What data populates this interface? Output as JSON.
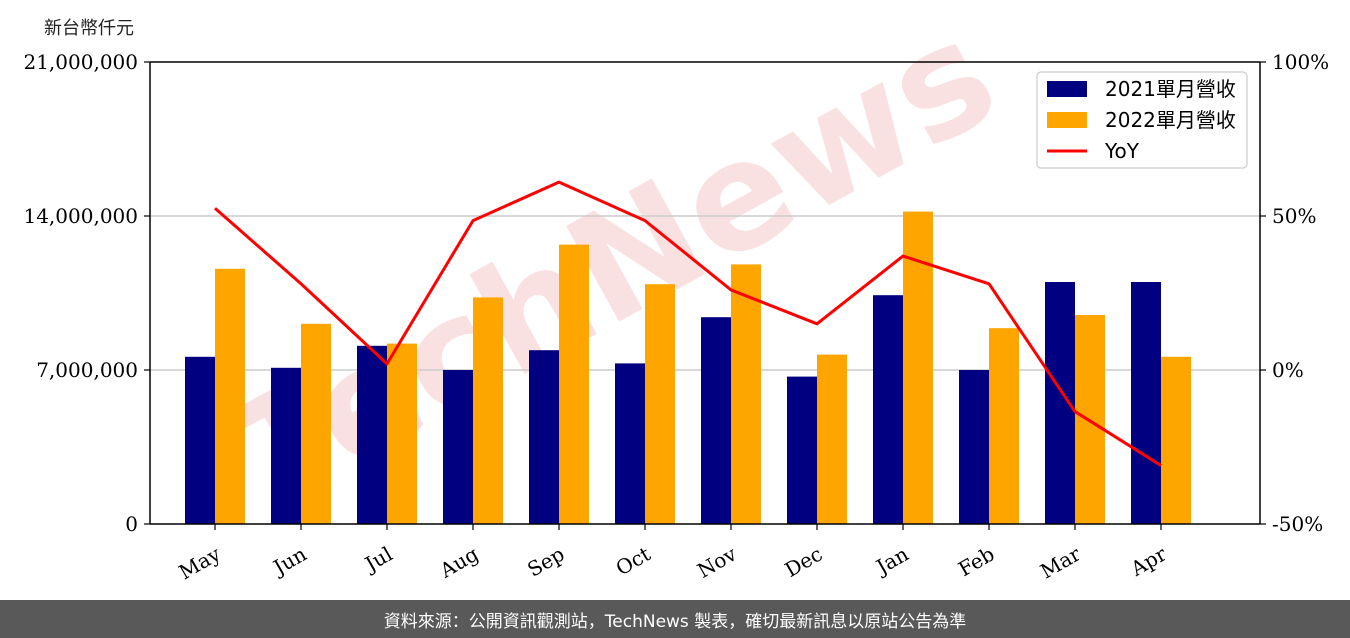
{
  "chart_data": {
    "type": "bar",
    "ylabel": "新台幣仟元",
    "categories": [
      "May",
      "Jun",
      "Jul",
      "Aug",
      "Sep",
      "Oct",
      "Nov",
      "Dec",
      "Jan",
      "Feb",
      "Mar",
      "Apr"
    ],
    "series": [
      {
        "name": "2021單月營收",
        "type": "bar",
        "color": "#000080",
        "values": [
          7600000,
          7100000,
          8100000,
          7000000,
          7900000,
          7300000,
          9400000,
          6700000,
          10400000,
          7000000,
          11000000,
          11000000
        ]
      },
      {
        "name": "2022單月營收",
        "type": "bar",
        "color": "#FFA500",
        "values": [
          11600000,
          9100000,
          8200000,
          10300000,
          12700000,
          10900000,
          11800000,
          7700000,
          14200000,
          8900000,
          9500000,
          7600000
        ]
      },
      {
        "name": "YoY",
        "type": "line",
        "axis": "right",
        "color": "#FF0000",
        "values": [
          52.5,
          28,
          2,
          48.5,
          61,
          48.5,
          26,
          15,
          37,
          28,
          -13.5,
          -31
        ]
      }
    ],
    "ylim": [
      0,
      21000000
    ],
    "yticks": [
      "0",
      "7,000,000",
      "14,000,000",
      "21,000,000"
    ],
    "ytick_values": [
      0,
      7000000,
      14000000,
      21000000
    ],
    "y2lim": [
      -50,
      100
    ],
    "y2ticks": [
      "-50%",
      "0%",
      "50%",
      "100%"
    ],
    "y2tick_values": [
      -50,
      0,
      50,
      100
    ],
    "grid": true,
    "legend_position": "top-right"
  },
  "watermark": "TechNews",
  "footer": {
    "source": "資料來源：公開資訊觀測站，TechNews 製表，確切最新訊息以原站公告為準"
  }
}
